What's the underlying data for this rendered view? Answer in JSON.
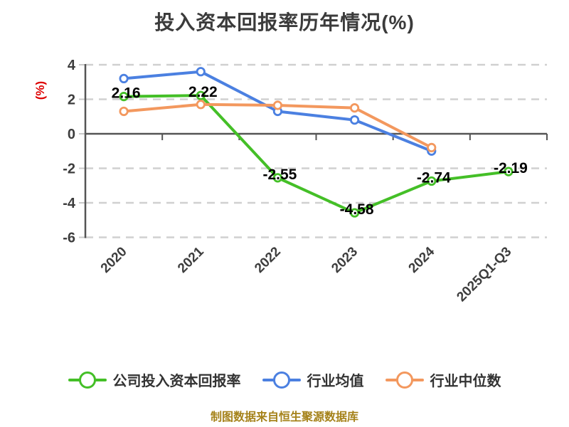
{
  "chart_data": {
    "type": "line",
    "title": "投入资本回报率历年情况(%)",
    "ylabel": "(%)",
    "xlabel": "",
    "categories": [
      "2020",
      "2021",
      "2022",
      "2023",
      "2024",
      "2025Q1-Q3"
    ],
    "series": [
      {
        "name": "公司投入资本回报率",
        "color": "#44bf27",
        "values": [
          2.16,
          2.22,
          -2.55,
          -4.58,
          -2.74,
          -2.19
        ],
        "point_labels": [
          "2.16",
          "2.22",
          "-2.55",
          "-4.58",
          "-2.74",
          "-2.19"
        ]
      },
      {
        "name": "行业均值",
        "color": "#4b80e1",
        "values": [
          3.2,
          3.6,
          1.3,
          0.8,
          -1.0,
          null
        ],
        "point_labels": null
      },
      {
        "name": "行业中位数",
        "color": "#f3985e",
        "values": [
          1.3,
          1.7,
          1.65,
          1.5,
          -0.8,
          null
        ],
        "point_labels": null
      }
    ],
    "ylim": [
      -6,
      4
    ],
    "yticks": [
      4,
      2,
      0,
      -2,
      -4,
      -6
    ],
    "grid": "horizontal dashed, zero axis solid",
    "legend_position": "bottom",
    "x_tick_rotation": -45
  },
  "source": "制图数据来自恒生聚源数据库",
  "colors": {
    "background": "#ffffff",
    "title": "#3b3b3b",
    "axis": "#555555",
    "tick_label": "#3d3d3d",
    "ylabel": "#dd0000",
    "grid": "#d0d0d0",
    "ytick_mark": "#c9c9c9",
    "data_label": "#000000",
    "legend_text": "#333333",
    "source_text": "#a5821a",
    "marker_fill": "#ffffff"
  }
}
